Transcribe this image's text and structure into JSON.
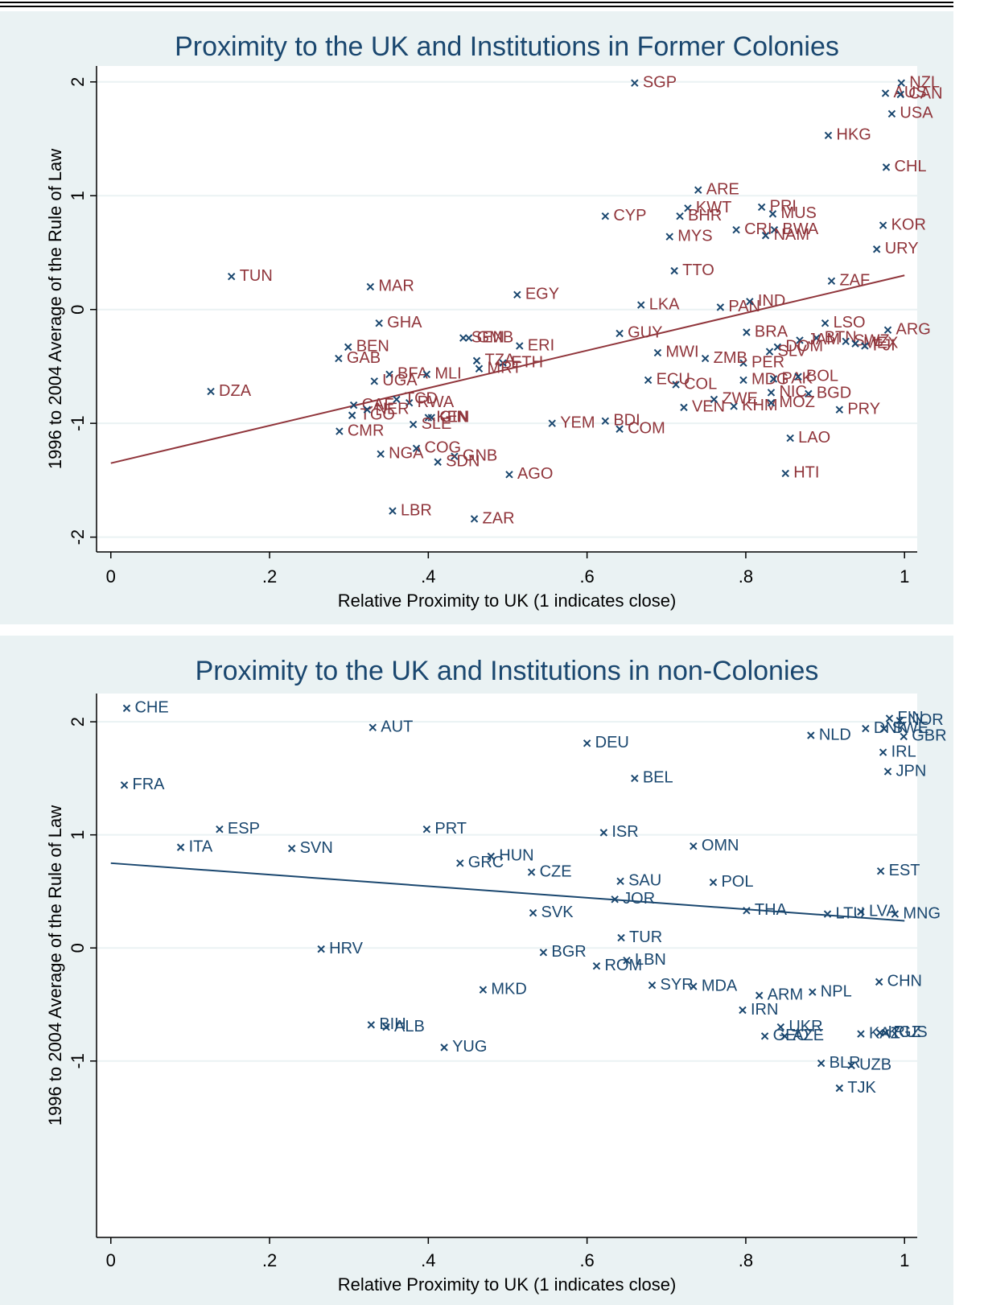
{
  "chart_data": [
    {
      "type": "scatter",
      "title": "Proximity to the UK and Institutions in Former Colonies",
      "xlabel": "Relative Proximity to UK (1 indicates close)",
      "ylabel": "1996 to 2004 Average of the Rule of Law",
      "mark_color": "#1a476f",
      "label_color": "#90353b",
      "line_color": "#90353b",
      "xlim": [
        -0.018,
        1.016
      ],
      "ylim": [
        -2.13,
        2.14
      ],
      "xticks": [
        0,
        {
          "value": 0.2,
          "label": ".2"
        },
        {
          "value": 0.4,
          "label": ".4"
        },
        {
          "value": 0.6,
          "label": ".6"
        },
        {
          "value": 0.8,
          "label": ".8"
        },
        1
      ],
      "yticks": [
        -2,
        -1,
        0,
        1,
        2
      ],
      "grid": true,
      "labels": [
        "NZL",
        "AUS",
        "CAN",
        "USA",
        "HKG",
        "SGP",
        "CHL",
        "ARE",
        "KWT",
        "BHR",
        "PRI",
        "MUS",
        "CRI",
        "BWA",
        "NAM",
        "CYP",
        "MYS",
        "KOR",
        "URY",
        "TTO",
        "ZAF",
        "TUN",
        "MAR",
        "EGY",
        "LKA",
        "PAN",
        "IND",
        "GHA",
        "LSO",
        "ARG",
        "BRA",
        "GUY",
        "SEN",
        "GMB",
        "BEN",
        "ERI",
        "GAB",
        "BTN",
        "SWZ",
        "MEX",
        "FJI",
        "JAM",
        "DOM",
        "SLV",
        "PER",
        "ZMB",
        "MWI",
        "BFA",
        "MLI",
        "UGA",
        "TZA",
        "ETH",
        "MRT",
        "ECU",
        "COL",
        "MDG",
        "PAK",
        "BOL",
        "NIC",
        "BGD",
        "DZA",
        "VEN",
        "KHM",
        "ZWE",
        "MOZ",
        "PRY",
        "CAF",
        "RWA",
        "TCD",
        "TGO",
        "KEN",
        "GIN",
        "SLE",
        "NER",
        "BDI",
        "YEM",
        "CMR",
        "COM",
        "NGA",
        "COG",
        "GNB",
        "SDN",
        "AGO",
        "LAO",
        "HTI",
        "LBR",
        "ZAR"
      ],
      "x": [
        0.996,
        0.976,
        0.995,
        0.984,
        0.904,
        0.66,
        0.977,
        0.74,
        0.727,
        0.717,
        0.82,
        0.834,
        0.788,
        0.836,
        0.825,
        0.623,
        0.704,
        0.973,
        0.965,
        0.71,
        0.908,
        0.152,
        0.327,
        0.512,
        0.668,
        0.768,
        0.805,
        0.338,
        0.9,
        0.979,
        0.801,
        0.641,
        0.444,
        0.451,
        0.299,
        0.515,
        0.287,
        0.889,
        0.926,
        0.938,
        0.95,
        0.868,
        0.84,
        0.83,
        0.797,
        0.749,
        0.689,
        0.351,
        0.398,
        0.332,
        0.461,
        0.494,
        0.464,
        0.677,
        0.712,
        0.797,
        0.835,
        0.866,
        0.832,
        0.879,
        0.126,
        0.722,
        0.785,
        0.76,
        0.832,
        0.918,
        0.306,
        0.376,
        0.36,
        0.304,
        0.4,
        0.404,
        0.381,
        0.323,
        0.623,
        0.556,
        0.288,
        0.641,
        0.34,
        0.385,
        0.433,
        0.412,
        0.502,
        0.856,
        0.85,
        0.355,
        0.458
      ],
      "values": [
        1.99,
        1.9,
        1.89,
        1.72,
        1.53,
        1.99,
        1.25,
        1.05,
        0.89,
        0.82,
        0.9,
        0.84,
        0.7,
        0.7,
        0.65,
        0.82,
        0.64,
        0.74,
        0.53,
        0.34,
        0.25,
        0.29,
        0.2,
        0.13,
        0.04,
        0.02,
        0.07,
        -0.12,
        -0.12,
        -0.18,
        -0.2,
        -0.21,
        -0.25,
        -0.25,
        -0.33,
        -0.32,
        -0.43,
        -0.25,
        -0.28,
        -0.3,
        -0.32,
        -0.27,
        -0.33,
        -0.37,
        -0.47,
        -0.43,
        -0.38,
        -0.57,
        -0.57,
        -0.63,
        -0.45,
        -0.47,
        -0.52,
        -0.62,
        -0.66,
        -0.62,
        -0.61,
        -0.59,
        -0.73,
        -0.74,
        -0.72,
        -0.86,
        -0.85,
        -0.79,
        -0.82,
        -0.88,
        -0.84,
        -0.82,
        -0.79,
        -0.93,
        -0.95,
        -0.95,
        -1.01,
        -0.88,
        -0.98,
        -1.0,
        -1.07,
        -1.05,
        -1.27,
        -1.22,
        -1.29,
        -1.34,
        -1.45,
        -1.13,
        -1.44,
        -1.77,
        -1.84
      ],
      "fit": {
        "x": [
          0,
          1
        ],
        "values": [
          -1.35,
          0.3
        ]
      }
    },
    {
      "type": "scatter",
      "title": "Proximity to the UK and Institutions in non-Colonies",
      "xlabel": "Relative Proximity to UK (1 indicates close)",
      "ylabel": "1996 to 2004 Average of the Rule of Law",
      "mark_color": "#1a476f",
      "label_color": "#1a476f",
      "line_color": "#1a476f",
      "xlim": [
        -0.018,
        1.016
      ],
      "ylim": [
        -2.56,
        2.25
      ],
      "xticks": [
        0,
        {
          "value": 0.2,
          "label": ".2"
        },
        {
          "value": 0.4,
          "label": ".4"
        },
        {
          "value": 0.6,
          "label": ".6"
        },
        {
          "value": 0.8,
          "label": ".8"
        },
        1
      ],
      "yticks": [
        -1,
        0,
        1,
        2
      ],
      "grid": true,
      "labels": [
        "CHE",
        "AUT",
        "DEU",
        "FRA",
        "ESP",
        "PRT",
        "BEL",
        "ITA",
        "SVN",
        "ISR",
        "OMN",
        "HUN",
        "GRC",
        "CZE",
        "SAU",
        "POL",
        "JOR",
        "SVK",
        "THA",
        "EST",
        "LTU",
        "LVA",
        "MNG",
        "NLD",
        "DNK",
        "FIN",
        "NOR",
        "SWE",
        "GBR",
        "IRL",
        "JPN",
        "HRV",
        "TUR",
        "BGR",
        "LBN",
        "ROM",
        "SYR",
        "MDA",
        "MKD",
        "ARM",
        "NPL",
        "CHN",
        "IRN",
        "BIH",
        "ALB",
        "UKR",
        "GEO",
        "AZE",
        "KAZ",
        "KGZ",
        "RUS",
        "YUG",
        "BLR",
        "UZB",
        "TJK"
      ],
      "x": [
        0.02,
        0.33,
        0.6,
        0.017,
        0.137,
        0.398,
        0.66,
        0.088,
        0.228,
        0.621,
        0.734,
        0.479,
        0.44,
        0.53,
        0.642,
        0.759,
        0.635,
        0.532,
        0.801,
        0.97,
        0.903,
        0.945,
        0.988,
        0.882,
        0.951,
        0.981,
        0.994,
        0.974,
        0.999,
        0.973,
        0.979,
        0.265,
        0.643,
        0.545,
        0.65,
        0.612,
        0.682,
        0.734,
        0.469,
        0.817,
        0.884,
        0.968,
        0.796,
        0.328,
        0.347,
        0.844,
        0.824,
        0.849,
        0.945,
        0.969,
        0.976,
        0.42,
        0.895,
        0.933,
        0.918
      ],
      "values": [
        2.12,
        1.95,
        1.81,
        1.44,
        1.05,
        1.05,
        1.5,
        0.89,
        0.88,
        1.02,
        0.9,
        0.81,
        0.75,
        0.67,
        0.59,
        0.58,
        0.43,
        0.31,
        0.33,
        0.68,
        0.3,
        0.32,
        0.3,
        1.88,
        1.94,
        2.03,
        2.01,
        1.94,
        1.87,
        1.73,
        1.56,
        -0.01,
        0.09,
        -0.04,
        -0.11,
        -0.16,
        -0.33,
        -0.34,
        -0.37,
        -0.42,
        -0.39,
        -0.3,
        -0.55,
        -0.68,
        -0.7,
        -0.7,
        -0.78,
        -0.78,
        -0.76,
        -0.75,
        -0.75,
        -0.88,
        -1.02,
        -1.04,
        -1.24
      ],
      "fit": {
        "x": [
          0,
          1
        ],
        "values": [
          0.75,
          0.24
        ]
      }
    }
  ]
}
